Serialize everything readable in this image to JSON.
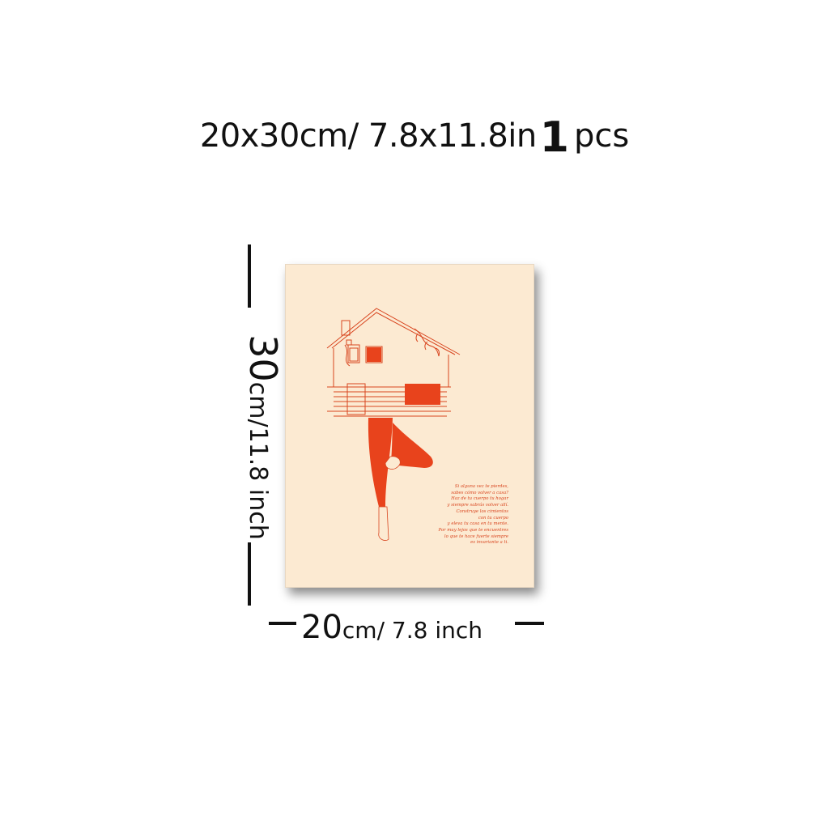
{
  "heading": {
    "size_text": "20x30cm/ 7.8x11.8in",
    "quantity": "1",
    "quantity_unit": "pcs"
  },
  "dimensions": {
    "height_number": "30",
    "height_rest": "cm/11.8 inch",
    "width_number": "20",
    "width_rest": "cm/ 7.8 inch"
  },
  "poster": {
    "background_color": "#fcead2",
    "accent_color": "#e8431c",
    "illustration": "house-on-leg-yoga-tree-pose",
    "poem_lines": [
      "Si alguna vez te pierdes,",
      "sabes cómo volver a casa?",
      "Haz de tu cuerpo tu hogar",
      "y siempre sabrás volver allí.",
      "Construye los cimientos",
      "con tu cuerpo",
      "y eleva tu casa en tu mente.",
      "Por muy lejos que te encuentres",
      "lo que te hace fuerte siempre",
      "es invariante a ti."
    ]
  }
}
